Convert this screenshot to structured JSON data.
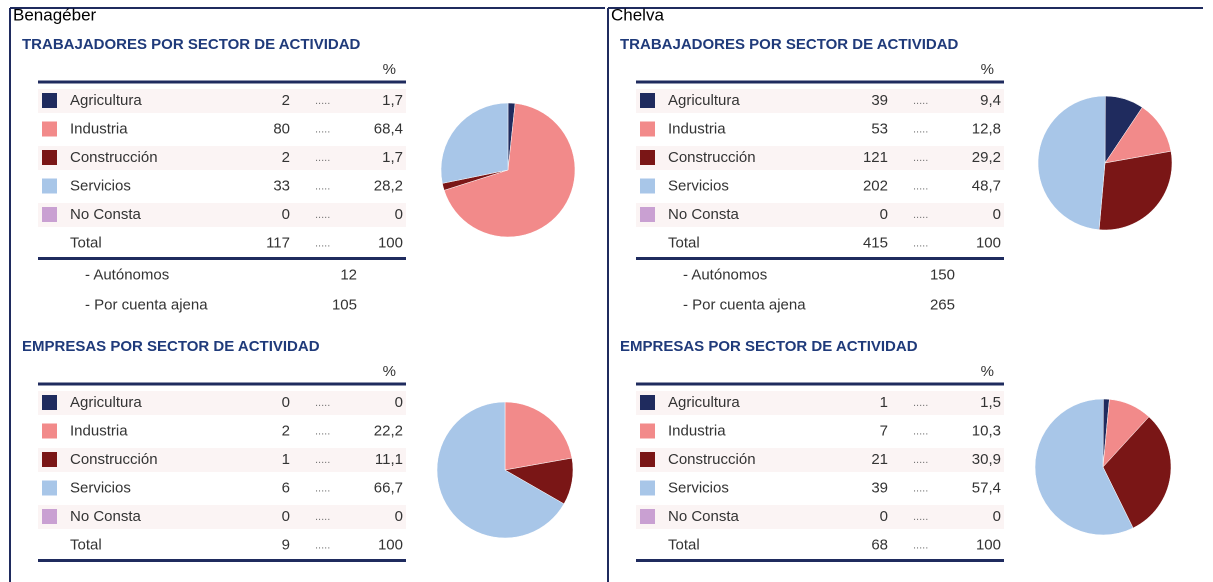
{
  "panels": [
    {
      "name": "Benagéber",
      "sections": [
        {
          "title": "TRABAJADORES POR SECTOR DE ACTIVIDAD",
          "pct_header": "%",
          "leader": ".....",
          "rows": [
            {
              "label": "Agricultura",
              "color": "#1f2b5e",
              "count": 2,
              "percent": 1.7,
              "percent_label": "1,7"
            },
            {
              "label": "Industria",
              "color": "#f28a8a",
              "count": 80,
              "percent": 68.4,
              "percent_label": "68,4"
            },
            {
              "label": "Construcción",
              "color": "#7a1616",
              "count": 2,
              "percent": 1.7,
              "percent_label": "1,7"
            },
            {
              "label": "Servicios",
              "color": "#a8c6e8",
              "count": 33,
              "percent": 28.2,
              "percent_label": "28,2"
            },
            {
              "label": "No Consta",
              "color": "#c9a0d2",
              "count": 0,
              "percent": 0
            }
          ],
          "total": {
            "label": "Total",
            "count": 117,
            "percent": 100
          },
          "extra": [
            {
              "label": "- Autónomos",
              "value": 12
            },
            {
              "label": "- Por cuenta ajena",
              "value": 105
            }
          ]
        },
        {
          "title": "EMPRESAS POR SECTOR DE ACTIVIDAD",
          "pct_header": "%",
          "leader": ".....",
          "rows": [
            {
              "label": "Agricultura",
              "color": "#1f2b5e",
              "count": 0,
              "percent": 0
            },
            {
              "label": "Industria",
              "color": "#f28a8a",
              "count": 2,
              "percent": 22.2,
              "percent_label": "22,2"
            },
            {
              "label": "Construcción",
              "color": "#7a1616",
              "count": 1,
              "percent": 11.1,
              "percent_label": "11,1"
            },
            {
              "label": "Servicios",
              "color": "#a8c6e8",
              "count": 6,
              "percent": 66.7,
              "percent_label": "66,7"
            },
            {
              "label": "No Consta",
              "color": "#c9a0d2",
              "count": 0,
              "percent": 0
            }
          ],
          "total": {
            "label": "Total",
            "count": 9,
            "percent": 100
          }
        }
      ]
    },
    {
      "name": "Chelva",
      "sections": [
        {
          "title": "TRABAJADORES POR SECTOR DE ACTIVIDAD",
          "pct_header": "%",
          "leader": ".....",
          "rows": [
            {
              "label": "Agricultura",
              "color": "#1f2b5e",
              "count": 39,
              "percent": 9.4,
              "percent_label": "9,4"
            },
            {
              "label": "Industria",
              "color": "#f28a8a",
              "count": 53,
              "percent": 12.8,
              "percent_label": "12,8"
            },
            {
              "label": "Construcción",
              "color": "#7a1616",
              "count": 121,
              "percent": 29.2,
              "percent_label": "29,2"
            },
            {
              "label": "Servicios",
              "color": "#a8c6e8",
              "count": 202,
              "percent": 48.7,
              "percent_label": "48,7"
            },
            {
              "label": "No Consta",
              "color": "#c9a0d2",
              "count": 0,
              "percent": 0
            }
          ],
          "total": {
            "label": "Total",
            "count": 415,
            "percent": 100
          },
          "extra": [
            {
              "label": "- Autónomos",
              "value": 150
            },
            {
              "label": "- Por cuenta ajena",
              "value": 265
            }
          ]
        },
        {
          "title": "EMPRESAS POR SECTOR DE ACTIVIDAD",
          "pct_header": "%",
          "leader": ".....",
          "rows": [
            {
              "label": "Agricultura",
              "color": "#1f2b5e",
              "count": 1,
              "percent": 1.5,
              "percent_label": "1,5"
            },
            {
              "label": "Industria",
              "color": "#f28a8a",
              "count": 7,
              "percent": 10.3,
              "percent_label": "10,3"
            },
            {
              "label": "Construcción",
              "color": "#7a1616",
              "count": 21,
              "percent": 30.9,
              "percent_label": "30,9"
            },
            {
              "label": "Servicios",
              "color": "#a8c6e8",
              "count": 39,
              "percent": 57.4,
              "percent_label": "57,4"
            },
            {
              "label": "No Consta",
              "color": "#c9a0d2",
              "count": 0,
              "percent": 0
            }
          ],
          "total": {
            "label": "Total",
            "count": 68,
            "percent": 100
          }
        }
      ]
    }
  ]
}
